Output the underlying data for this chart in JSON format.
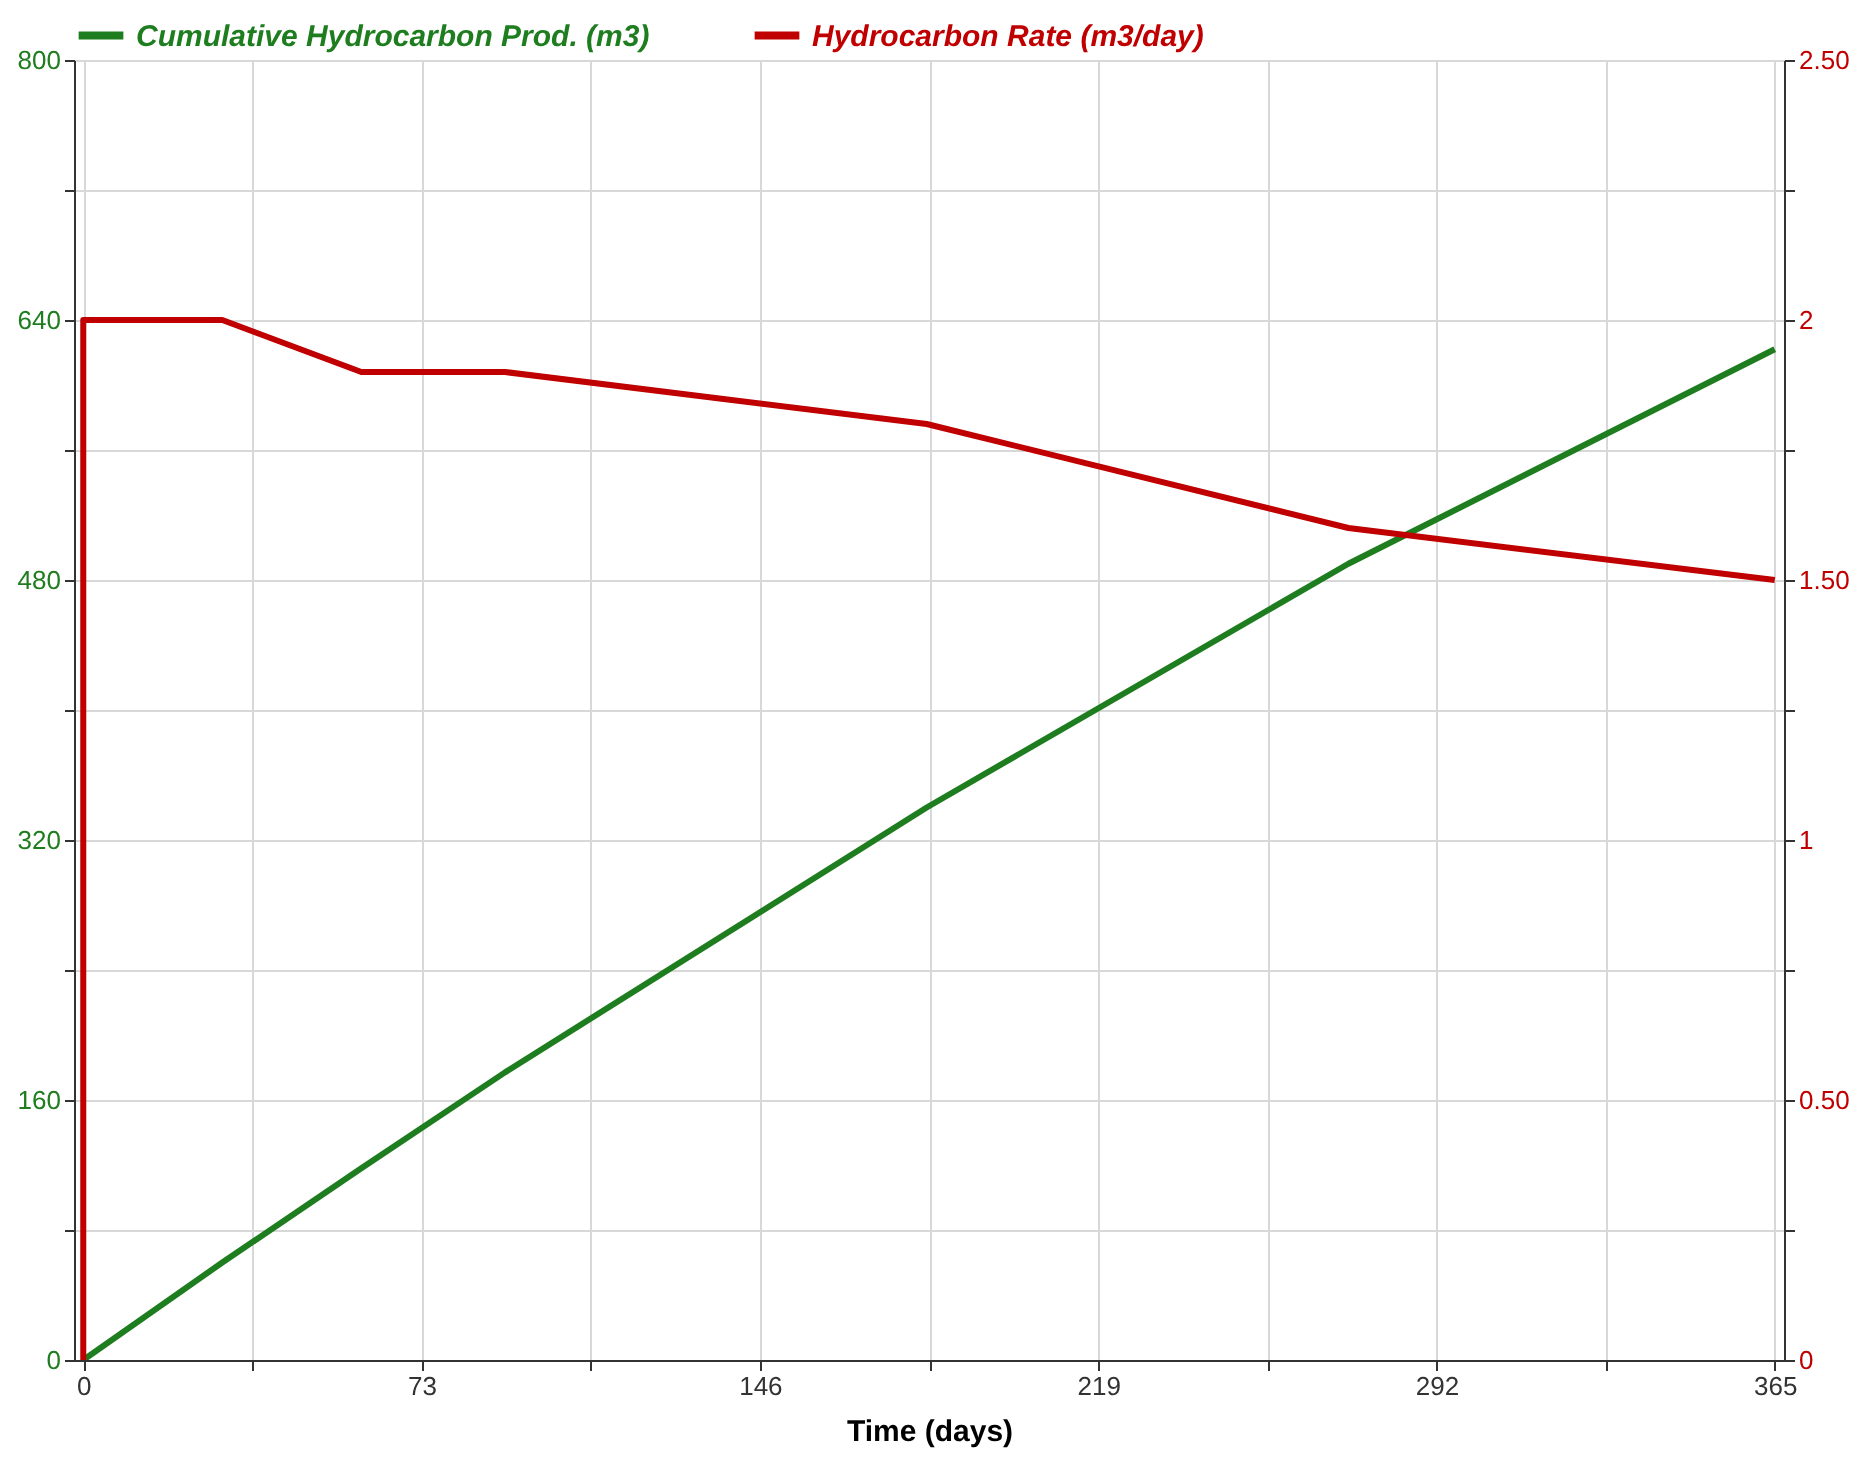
{
  "chart_data": {
    "type": "line",
    "xlabel": "Time (days)",
    "x": [
      0,
      30,
      60,
      91,
      182,
      273,
      365
    ],
    "series": [
      {
        "name": "Cumulative Hydrocarbon Prod.  (m3)",
        "color": "#1e7d1e",
        "values": [
          0,
          60,
          118,
          177,
          340,
          490,
          622
        ]
      },
      {
        "name": "Hydrocarbon Rate  (m3/day)",
        "color": "#c00000",
        "axis": "y2",
        "x": [
          0,
          0,
          30,
          60,
          91,
          182,
          273,
          365
        ],
        "values": [
          0,
          2,
          2,
          1.9,
          1.9,
          1.8,
          1.6,
          1.5
        ]
      }
    ],
    "xlim": [
      -2,
      367
    ],
    "xticks": [
      0,
      {
        "value": 36.5,
        "label": null
      },
      73,
      {
        "value": 109.5,
        "label": null
      },
      146,
      {
        "value": 182.5,
        "label": null
      },
      219,
      {
        "value": 255.5,
        "label": null
      },
      292,
      {
        "value": 328.5,
        "label": null
      },
      365
    ],
    "ylim": [
      0,
      800
    ],
    "yticks": [
      0,
      {
        "value": 80,
        "label": null
      },
      160,
      {
        "value": 240,
        "label": null
      },
      320,
      {
        "value": 400,
        "label": null
      },
      480,
      {
        "value": 560,
        "label": null
      },
      640,
      {
        "value": 720,
        "label": null
      },
      800
    ],
    "y2lim": [
      0,
      2.5
    ],
    "y2ticks": [
      0,
      {
        "value": 0.25,
        "label": null
      },
      {
        "value": 0.5,
        "label": "0.50"
      },
      {
        "value": 0.75,
        "label": null
      },
      1,
      {
        "value": 1.25,
        "label": null
      },
      {
        "value": 1.5,
        "label": "1.50"
      },
      {
        "value": 1.75,
        "label": null
      },
      2,
      {
        "value": 2.25,
        "label": null
      },
      {
        "value": 2.5,
        "label": "2.50"
      }
    ],
    "grid": true,
    "legend": "top left",
    "marker": "none",
    "line_style": "solid"
  }
}
